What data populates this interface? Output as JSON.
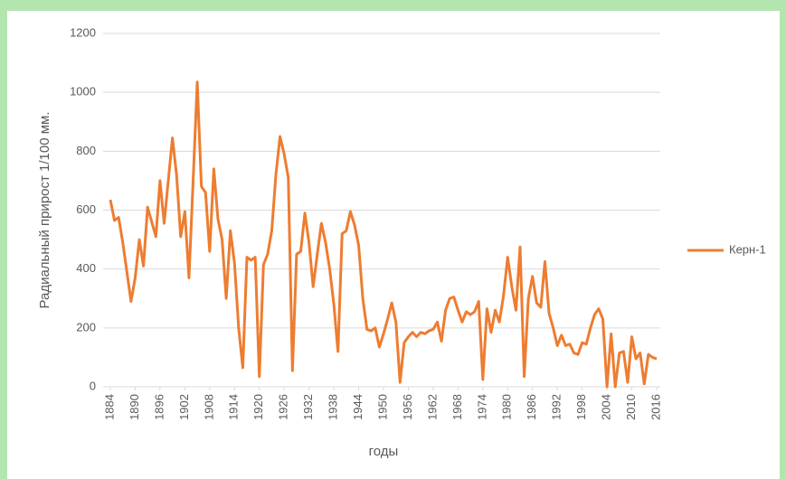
{
  "chart_data": {
    "type": "line",
    "y_label": "Радиальный прирост 1/100 мм.",
    "x_label": "годы",
    "x": [
      1884,
      1885,
      1886,
      1887,
      1888,
      1889,
      1890,
      1891,
      1892,
      1893,
      1894,
      1895,
      1896,
      1897,
      1898,
      1899,
      1900,
      1901,
      1902,
      1903,
      1904,
      1905,
      1906,
      1907,
      1908,
      1909,
      1910,
      1911,
      1912,
      1913,
      1914,
      1915,
      1916,
      1917,
      1918,
      1919,
      1920,
      1921,
      1922,
      1923,
      1924,
      1925,
      1926,
      1927,
      1928,
      1929,
      1930,
      1931,
      1932,
      1933,
      1934,
      1935,
      1936,
      1937,
      1938,
      1939,
      1940,
      1941,
      1942,
      1943,
      1944,
      1945,
      1946,
      1947,
      1948,
      1949,
      1950,
      1951,
      1952,
      1953,
      1954,
      1955,
      1956,
      1957,
      1958,
      1959,
      1960,
      1961,
      1962,
      1963,
      1964,
      1965,
      1966,
      1967,
      1968,
      1969,
      1970,
      1971,
      1972,
      1973,
      1974,
      1975,
      1976,
      1977,
      1978,
      1979,
      1980,
      1981,
      1982,
      1983,
      1984,
      1985,
      1986,
      1987,
      1988,
      1989,
      1990,
      1991,
      1992,
      1993,
      1994,
      1995,
      1996,
      1997,
      1998,
      1999,
      2000,
      2001,
      2002,
      2003,
      2004,
      2005,
      2006,
      2007,
      2008,
      2009,
      2010,
      2011,
      2012,
      2013,
      2014,
      2015,
      2016
    ],
    "series": [
      {
        "name": "Керн-1",
        "color": "#ed7d31",
        "values": [
          635,
          565,
          575,
          490,
          390,
          290,
          370,
          500,
          410,
          610,
          560,
          510,
          700,
          555,
          700,
          845,
          720,
          510,
          595,
          370,
          700,
          1035,
          680,
          660,
          460,
          740,
          570,
          500,
          300,
          530,
          420,
          200,
          65,
          440,
          430,
          440,
          35,
          415,
          450,
          530,
          720,
          850,
          790,
          710,
          55,
          450,
          460,
          590,
          490,
          340,
          450,
          555,
          490,
          400,
          280,
          120,
          520,
          530,
          595,
          550,
          480,
          300,
          195,
          190,
          200,
          135,
          180,
          230,
          285,
          220,
          15,
          150,
          170,
          185,
          170,
          185,
          180,
          190,
          195,
          220,
          155,
          260,
          300,
          305,
          260,
          220,
          255,
          245,
          255,
          290,
          25,
          265,
          185,
          260,
          220,
          310,
          440,
          340,
          260,
          475,
          35,
          300,
          375,
          285,
          270,
          425,
          250,
          200,
          140,
          175,
          140,
          145,
          115,
          110,
          150,
          145,
          200,
          245,
          265,
          230,
          0,
          180,
          0,
          115,
          120,
          15,
          170,
          95,
          115,
          10,
          110,
          100,
          95
        ]
      }
    ],
    "xlim": [
      1884,
      2016
    ],
    "xticks": [
      1884,
      1890,
      1896,
      1902,
      1908,
      1914,
      1920,
      1926,
      1932,
      1938,
      1944,
      1950,
      1956,
      1962,
      1968,
      1974,
      1980,
      1986,
      1992,
      1998,
      2004,
      2010,
      2016
    ],
    "ylim": [
      0,
      1200
    ],
    "yticks": [
      0,
      200,
      400,
      600,
      800,
      1000,
      1200
    ],
    "grid": true,
    "legend": "right"
  }
}
